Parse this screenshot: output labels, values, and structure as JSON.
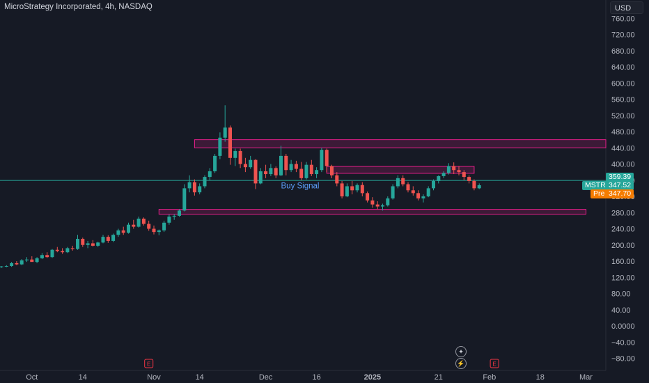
{
  "header": {
    "symbol_title": "MicroStrategy Incorporated, 4h, NASDAQ",
    "currency_button": "USD"
  },
  "price_tags": {
    "level_line": "359.39",
    "symbol": "MSTR",
    "last_price": "347.52",
    "pre_label": "Pre",
    "pre_price": "347.70"
  },
  "annotation": "Buy Signal",
  "earnings_badge": "E",
  "colors": {
    "background": "#161a25",
    "up": "#26a69a",
    "down": "#ef5350",
    "zone_fill": "#e91e8c",
    "level_line": "#26a69a",
    "pre_tag": "#f57c00"
  },
  "chart_data": {
    "type": "candlestick",
    "y_axis": {
      "min": -100,
      "max": 780,
      "ticks": [
        "760.00",
        "720.00",
        "680.00",
        "640.00",
        "600.00",
        "560.00",
        "520.00",
        "480.00",
        "440.00",
        "400.00",
        "360.00",
        "320.00",
        "280.00",
        "240.00",
        "200.00",
        "160.00",
        "120.00",
        "80.00",
        "40.00",
        "0.0000",
        "−40.00",
        "−80.00"
      ]
    },
    "x_axis": {
      "ticks": [
        {
          "label": "Oct",
          "bar": 6,
          "bold": false
        },
        {
          "label": "14",
          "bar": 16,
          "bold": false
        },
        {
          "label": "Nov",
          "bar": 30,
          "bold": false
        },
        {
          "label": "14",
          "bar": 39,
          "bold": false
        },
        {
          "label": "Dec",
          "bar": 52,
          "bold": false
        },
        {
          "label": "16",
          "bar": 62,
          "bold": false
        },
        {
          "label": "2025",
          "bar": 73,
          "bold": true
        },
        {
          "label": "21",
          "bar": 86,
          "bold": false
        },
        {
          "label": "Feb",
          "bar": 96,
          "bold": false
        },
        {
          "label": "18",
          "bar": 106,
          "bold": false
        },
        {
          "label": "Mar",
          "bar": 115,
          "bold": false
        }
      ]
    },
    "zones": [
      {
        "from_bar": 38,
        "to_bar": 120,
        "low": 440,
        "high": 460
      },
      {
        "from_bar": 64,
        "to_bar": 93,
        "low": 377,
        "high": 394
      },
      {
        "from_bar": 31,
        "to_bar": 115,
        "low": 276,
        "high": 288
      }
    ],
    "horizontal_lines": [
      359.39
    ],
    "earnings_markers": [
      29,
      97
    ],
    "candles": [
      [
        145,
        148,
        143,
        147
      ],
      [
        147,
        150,
        145,
        148
      ],
      [
        148,
        158,
        146,
        155
      ],
      [
        155,
        160,
        150,
        152
      ],
      [
        152,
        165,
        150,
        162
      ],
      [
        162,
        170,
        158,
        164
      ],
      [
        164,
        172,
        160,
        158
      ],
      [
        158,
        170,
        155,
        167
      ],
      [
        167,
        180,
        165,
        175
      ],
      [
        175,
        182,
        168,
        170
      ],
      [
        170,
        190,
        168,
        188
      ],
      [
        188,
        195,
        182,
        185
      ],
      [
        185,
        192,
        178,
        182
      ],
      [
        182,
        195,
        180,
        192
      ],
      [
        192,
        198,
        186,
        190
      ],
      [
        190,
        225,
        188,
        215
      ],
      [
        215,
        218,
        195,
        200
      ],
      [
        200,
        210,
        192,
        204
      ],
      [
        204,
        212,
        196,
        198
      ],
      [
        198,
        208,
        195,
        206
      ],
      [
        206,
        225,
        204,
        220
      ],
      [
        220,
        224,
        205,
        210
      ],
      [
        210,
        228,
        207,
        225
      ],
      [
        225,
        240,
        220,
        236
      ],
      [
        236,
        245,
        225,
        230
      ],
      [
        230,
        255,
        228,
        250
      ],
      [
        250,
        262,
        240,
        245
      ],
      [
        245,
        270,
        243,
        265
      ],
      [
        265,
        268,
        248,
        252
      ],
      [
        252,
        260,
        235,
        240
      ],
      [
        240,
        248,
        226,
        232
      ],
      [
        232,
        238,
        224,
        236
      ],
      [
        236,
        260,
        232,
        255
      ],
      [
        255,
        275,
        250,
        270
      ],
      [
        270,
        276,
        262,
        272
      ],
      [
        272,
        288,
        270,
        285
      ],
      [
        285,
        350,
        283,
        340
      ],
      [
        340,
        372,
        330,
        355
      ],
      [
        355,
        362,
        322,
        330
      ],
      [
        330,
        352,
        325,
        345
      ],
      [
        345,
        372,
        340,
        368
      ],
      [
        368,
        390,
        360,
        382
      ],
      [
        382,
        425,
        378,
        420
      ],
      [
        420,
        478,
        412,
        465
      ],
      [
        465,
        545,
        455,
        490
      ],
      [
        490,
        495,
        398,
        415
      ],
      [
        415,
        438,
        395,
        432
      ],
      [
        432,
        438,
        390,
        400
      ],
      [
        400,
        415,
        380,
        392
      ],
      [
        392,
        420,
        388,
        410
      ],
      [
        410,
        412,
        338,
        352
      ],
      [
        352,
        390,
        350,
        382
      ],
      [
        382,
        398,
        365,
        375
      ],
      [
        375,
        400,
        370,
        390
      ],
      [
        390,
        394,
        365,
        372
      ],
      [
        372,
        445,
        370,
        420
      ],
      [
        420,
        425,
        372,
        385
      ],
      [
        385,
        410,
        380,
        400
      ],
      [
        400,
        408,
        380,
        388
      ],
      [
        388,
        405,
        360,
        365
      ],
      [
        365,
        405,
        362,
        398
      ],
      [
        398,
        410,
        370,
        375
      ],
      [
        375,
        392,
        365,
        385
      ],
      [
        385,
        440,
        380,
        435
      ],
      [
        435,
        438,
        380,
        395
      ],
      [
        395,
        398,
        365,
        372
      ],
      [
        372,
        380,
        345,
        352
      ],
      [
        352,
        358,
        315,
        320
      ],
      [
        320,
        352,
        318,
        345
      ],
      [
        345,
        358,
        325,
        335
      ],
      [
        335,
        352,
        330,
        348
      ],
      [
        348,
        355,
        320,
        328
      ],
      [
        328,
        332,
        305,
        310
      ],
      [
        310,
        318,
        292,
        300
      ],
      [
        300,
        308,
        288,
        295
      ],
      [
        295,
        302,
        285,
        298
      ],
      [
        298,
        320,
        295,
        315
      ],
      [
        315,
        350,
        312,
        345
      ],
      [
        345,
        372,
        340,
        365
      ],
      [
        365,
        372,
        345,
        350
      ],
      [
        350,
        355,
        330,
        335
      ],
      [
        335,
        345,
        322,
        328
      ],
      [
        328,
        335,
        310,
        315
      ],
      [
        315,
        325,
        305,
        320
      ],
      [
        320,
        345,
        318,
        340
      ],
      [
        340,
        362,
        335,
        358
      ],
      [
        358,
        372,
        352,
        370
      ],
      [
        370,
        382,
        365,
        378
      ],
      [
        378,
        402,
        374,
        395
      ],
      [
        395,
        404,
        375,
        385
      ],
      [
        385,
        395,
        372,
        380
      ],
      [
        380,
        385,
        360,
        368
      ],
      [
        368,
        372,
        352,
        358
      ],
      [
        358,
        362,
        335,
        340
      ],
      [
        340,
        352,
        338,
        347.52
      ]
    ]
  }
}
